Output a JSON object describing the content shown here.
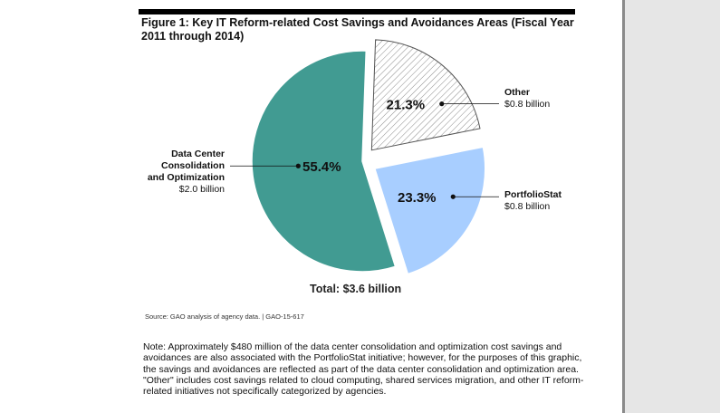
{
  "page": {
    "title": "Figure 1: Key IT Reform-related Cost Savings and Avoidances Areas (Fiscal Year 2011 through 2014)",
    "total_label": "Total:  $3.6 billion",
    "source": "Source: GAO analysis of agency data.  |  GAO-15-617",
    "note": "Note: Approximately $480 million of the data center consolidation and optimization cost savings and avoidances are also associated with the PortfolioStat initiative; however, for the purposes of this graphic, the savings and avoidances are reflected as part of the data center consolidation and optimization area. \"Other\" includes cost savings related to cloud computing, shared services migration, and other IT reform-related initiatives not specifically categorized by agencies."
  },
  "chart_data": {
    "type": "pie",
    "title": "Figure 1: Key IT Reform-related Cost Savings and Avoidances Areas (Fiscal Year 2011 through 2014)",
    "total": "Total:  $3.6 billion",
    "unit": "percent",
    "slices": [
      {
        "name": "Other",
        "value": 21.3,
        "pct_label": "21.3%",
        "amount": "$0.8 billion",
        "color": "#ffffff",
        "pattern": "diagonal-hatch",
        "exploded": true
      },
      {
        "name": "PortfolioStat",
        "value": 23.3,
        "pct_label": "23.3%",
        "amount": "$0.8 billion",
        "color": "#a8ceff",
        "exploded": true
      },
      {
        "name": "Data Center Consolidation and Optimization",
        "value": 55.4,
        "pct_label": "55.4%",
        "amount": "$2.0 billion",
        "color": "#419b92",
        "exploded": false
      }
    ],
    "label_lines": {
      "Data Center Consolidation and Optimization": [
        "Data Center",
        "Consolidation",
        "and Optimization"
      ]
    }
  }
}
